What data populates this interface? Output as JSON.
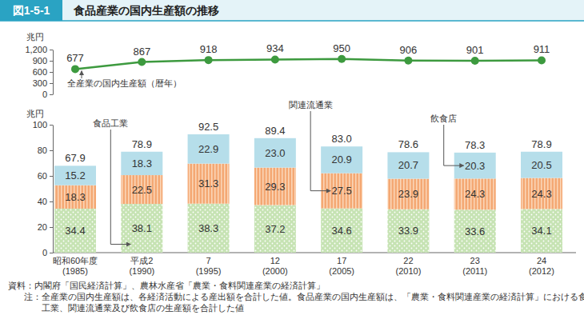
{
  "header": {
    "label": "図1-5-1",
    "title": "食品産業の国内生産額の推移"
  },
  "notes": [
    "資料：内閣府「国民経済計算」、農林水産省「農業・食料関連産業の経済計算」",
    "注：全産業の国内生産額は、各経済活動による産出額を合計した値。食品産業の国内生産額は、「農業・食料関連産業の経済計算」における食品",
    "工業、関連流通業及び飲食店の生産額を合計した値"
  ],
  "chart_data": [
    {
      "type": "line",
      "y_label": "兆円",
      "annotation": "全産業の国内生産額（暦年）",
      "categories": [
        null,
        null,
        null,
        null,
        null,
        null,
        null,
        null
      ],
      "values": [
        677,
        867,
        918,
        934,
        950,
        906,
        901,
        911
      ],
      "color": "#3d9a3f",
      "marker": "circle",
      "data_labels": true,
      "tick_labels": "y",
      "ylim": [
        0,
        1200
      ],
      "yticks": [
        0,
        300,
        600,
        900,
        {
          "value": 1200,
          "label": "1,200"
        }
      ]
    },
    {
      "type": "bar",
      "stacked": true,
      "data_labels": true,
      "y_label": "兆円",
      "categories": [
        "昭和60年度\n(1985)",
        "平成2\n(1990)",
        "7\n(1995)",
        "12\n(2000)",
        "17\n(2005)",
        "22\n(2010)",
        "23\n(2011)",
        "24\n(2012)"
      ],
      "series": [
        {
          "name": "食品工業",
          "color": "#c6e3b3",
          "values": [
            34.4,
            38.1,
            38.3,
            37.2,
            34.6,
            33.9,
            33.6,
            34.1
          ]
        },
        {
          "name": "関連流通業",
          "color": "#f4a873",
          "values": [
            18.3,
            22.5,
            31.3,
            29.3,
            27.5,
            23.9,
            24.3,
            24.3
          ]
        },
        {
          "name": "飲食店",
          "color": "#b6deea",
          "values": [
            15.2,
            18.3,
            22.9,
            23.0,
            20.9,
            20.7,
            20.3,
            20.5
          ],
          "value_labels": [
            "15.2",
            "18.3",
            "22.9",
            "23.0",
            "20.9",
            "20.7",
            "20.3",
            "20.5"
          ]
        }
      ],
      "totals": [
        67.9,
        78.9,
        92.5,
        89.4,
        83.0,
        78.6,
        78.3,
        78.9
      ],
      "total_labels": [
        "67.9",
        "78.9",
        "92.5",
        "89.4",
        "83.0",
        "78.6",
        "78.3",
        "78.9"
      ],
      "ylim": [
        0,
        100
      ],
      "yticks": [
        0,
        20,
        40,
        60,
        80,
        100
      ]
    }
  ]
}
